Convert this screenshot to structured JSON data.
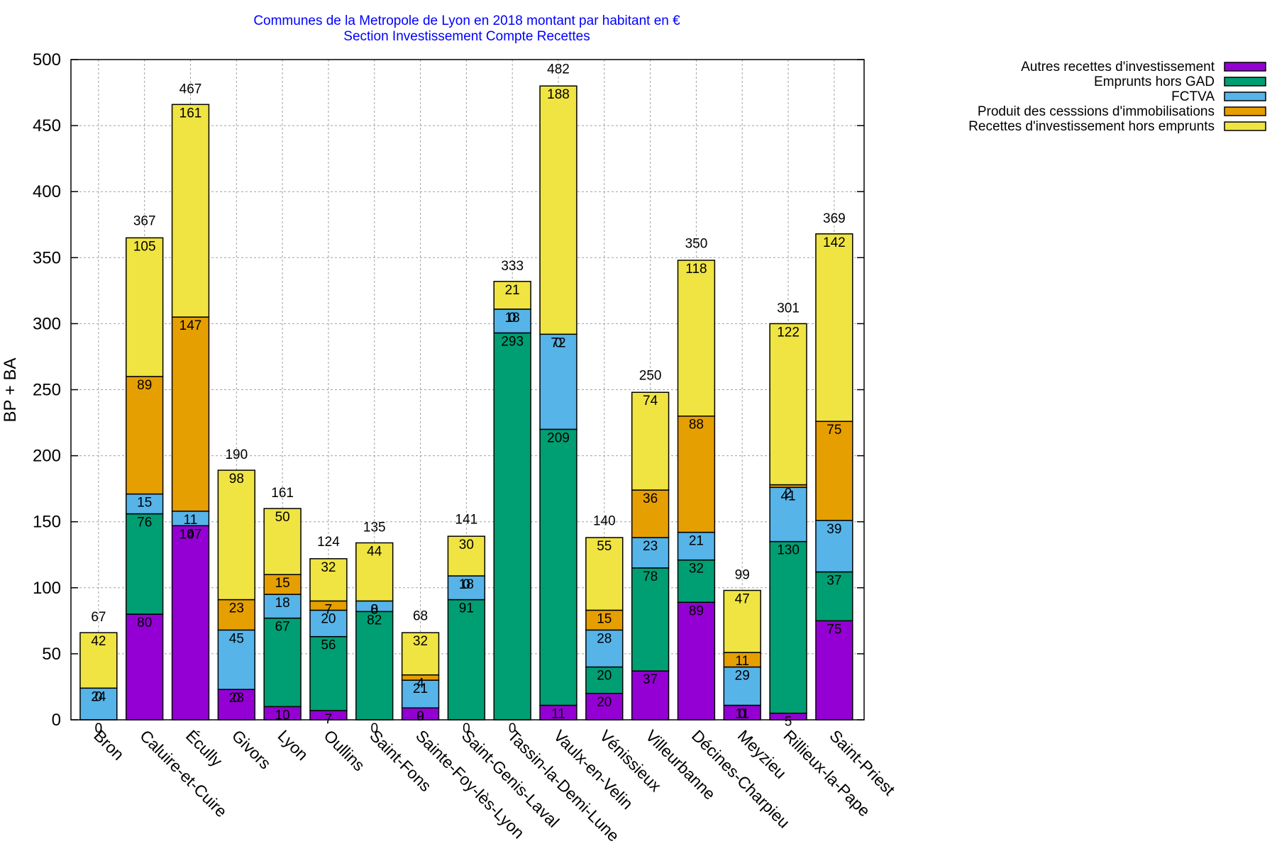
{
  "chart_data": {
    "type": "bar",
    "stacked": true,
    "title": "Communes de la Metropole de Lyon en 2018 montant par habitant en €",
    "subtitle": "Section Investissement Compte Recettes",
    "xlabel": "",
    "ylabel": "BP + BA",
    "ylim": [
      0,
      500
    ],
    "yticks": [
      0,
      50,
      100,
      150,
      200,
      250,
      300,
      350,
      400,
      450,
      500
    ],
    "grid": true,
    "legend_position": "top-right-outside",
    "categories": [
      "Bron",
      "Caluire-et-Cuire",
      "Écully",
      "Givors",
      "Lyon",
      "Oullins",
      "Saint-Fons",
      "Sainte-Foy-lès-Lyon",
      "Saint-Genis-Laval",
      "Tassin-la-Demi-Lune",
      "Vaulx-en-Velin",
      "Vénissieux",
      "Villeurbanne",
      "Décines-Charpieu",
      "Meyzieu",
      "Rillieux-la-Pape",
      "Saint-Priest"
    ],
    "series": [
      {
        "name": "Autres recettes d'investissement",
        "color": "#9400d3",
        "values": [
          0,
          80,
          147,
          23,
          10,
          7,
          0,
          9,
          0,
          0,
          11,
          20,
          37,
          89,
          11,
          5,
          75
        ]
      },
      {
        "name": "Emprunts hors GAD",
        "color": "#009e73",
        "values": [
          0,
          76,
          0,
          0,
          67,
          56,
          82,
          0,
          91,
          293,
          209,
          20,
          78,
          32,
          0,
          130,
          37
        ]
      },
      {
        "name": "FCTVA",
        "color": "#56b4e9",
        "values": [
          24,
          15,
          11,
          45,
          18,
          20,
          8,
          21,
          18,
          18,
          72,
          28,
          23,
          21,
          29,
          41,
          39
        ]
      },
      {
        "name": "Produit des cesssions d'immobilisations",
        "color": "#e69f00",
        "values": [
          0,
          89,
          147,
          23,
          15,
          7,
          0,
          4,
          0,
          0,
          0,
          15,
          36,
          88,
          11,
          2,
          75
        ]
      },
      {
        "name": "Recettes d'investissement hors emprunts",
        "color": "#f0e442",
        "values": [
          42,
          105,
          161,
          98,
          50,
          32,
          44,
          32,
          30,
          21,
          188,
          55,
          74,
          118,
          47,
          122,
          142
        ]
      }
    ],
    "totals": [
      67,
      367,
      467,
      190,
      161,
      124,
      135,
      68,
      141,
      333,
      482,
      140,
      250,
      350,
      99,
      301,
      369
    ]
  }
}
